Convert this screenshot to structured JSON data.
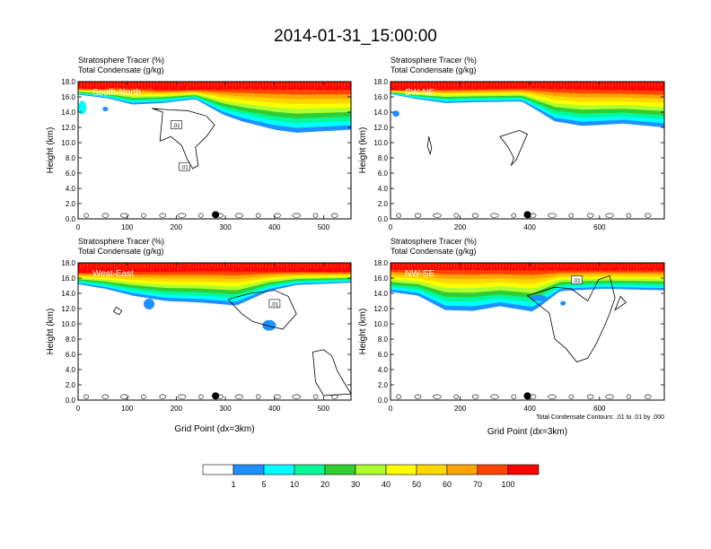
{
  "title": "2014-01-31_15:00:00",
  "colors": {
    "scale": [
      "#ffffff",
      "#1e90ff",
      "#00ffff",
      "#00fa9a",
      "#32cd32",
      "#adff2f",
      "#ffff00",
      "#ffd700",
      "#ffa500",
      "#ff4500",
      "#ff0000"
    ],
    "background": "#ffffff"
  },
  "panel_labels": {
    "line1": "Stratosphere Tracer   (%)",
    "line2": "Total Condensate   (g/kg)"
  },
  "footnote": "Total Condensate Contours: .01 to .01 by .000",
  "colorbar": {
    "labels": [
      "1",
      "5",
      "10",
      "20",
      "30",
      "40",
      "50",
      "60",
      "70",
      "100"
    ]
  },
  "chart_data": [
    {
      "type": "heatmap",
      "name": "South-North",
      "ylabel": "Height (km)",
      "xlabel": "",
      "xlim": [
        0,
        556
      ],
      "ylim": [
        0,
        18
      ],
      "xticks": [
        0,
        100,
        200,
        300,
        400,
        500
      ],
      "yticks": [
        "0.0",
        "2.0",
        "4.0",
        "6.0",
        "8.0",
        "10.0",
        "12.0",
        "14.0",
        "16.0",
        "18.0"
      ],
      "marker_x": 280,
      "contour_labels": [
        ".01",
        ".01"
      ]
    },
    {
      "type": "heatmap",
      "name": "SW-NE",
      "ylabel": "Height (km)",
      "xlabel": "",
      "xlim": [
        0,
        786
      ],
      "ylim": [
        0,
        18
      ],
      "xticks": [
        0,
        200,
        400,
        600
      ],
      "yticks": [
        "0.0",
        "2.0",
        "4.0",
        "6.0",
        "8.0",
        "10.0",
        "12.0",
        "14.0",
        "16.0",
        "18.0"
      ],
      "marker_x": 393,
      "contour_labels": []
    },
    {
      "type": "heatmap",
      "name": "West-East",
      "ylabel": "Height (km)",
      "xlabel": "Grid Point (dx=3km)",
      "xlim": [
        0,
        556
      ],
      "ylim": [
        0,
        18
      ],
      "xticks": [
        0,
        100,
        200,
        300,
        400,
        500
      ],
      "yticks": [
        "0.0",
        "2.0",
        "4.0",
        "6.0",
        "8.0",
        "10.0",
        "12.0",
        "14.0",
        "16.0",
        "18.0"
      ],
      "marker_x": 280,
      "contour_labels": [
        ".01"
      ]
    },
    {
      "type": "heatmap",
      "name": "NW-SE",
      "ylabel": "Height (km)",
      "xlabel": "Grid Point (dx=3km)",
      "xlim": [
        0,
        786
      ],
      "ylim": [
        0,
        18
      ],
      "xticks": [
        0,
        200,
        400,
        600
      ],
      "yticks": [
        "0.0",
        "2.0",
        "4.0",
        "6.0",
        "8.0",
        "10.0",
        "12.0",
        "14.0",
        "16.0",
        "18.0"
      ],
      "marker_x": 393,
      "contour_labels": [
        ".01"
      ]
    }
  ]
}
